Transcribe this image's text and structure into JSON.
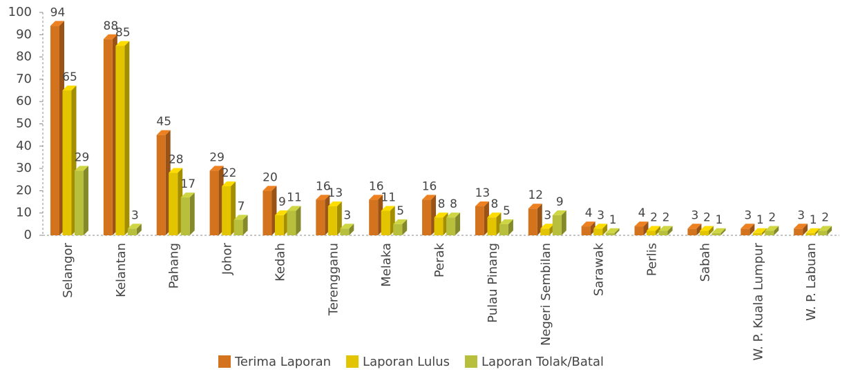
{
  "chart_data": {
    "type": "bar",
    "categories": [
      "Selangor",
      "Kelantan",
      "Pahang",
      "Johor",
      "Kedah",
      "Terengganu",
      "Melaka",
      "Perak",
      "Pulau Pinang",
      "Negeri Sembilan",
      "Sarawak",
      "Perlis",
      "Sabah",
      "W. P. Kuala Lumpur",
      "W. P. Labuan"
    ],
    "series": [
      {
        "name": "Terima Laporan",
        "color": "#d4731e",
        "values": [
          94,
          88,
          45,
          29,
          20,
          16,
          16,
          16,
          13,
          12,
          4,
          4,
          3,
          3,
          3
        ]
      },
      {
        "name": "Laporan Lulus",
        "color": "#e2c400",
        "values": [
          65,
          85,
          28,
          22,
          9,
          13,
          11,
          8,
          8,
          3,
          3,
          2,
          2,
          1,
          1
        ]
      },
      {
        "name": "Laporan Tolak/Batal",
        "color": "#b8bf3c",
        "values": [
          29,
          3,
          17,
          7,
          11,
          3,
          5,
          8,
          5,
          9,
          1,
          2,
          1,
          2,
          2
        ]
      }
    ],
    "ylim": [
      0,
      100
    ],
    "yticks": [
      0,
      10,
      20,
      30,
      40,
      50,
      60,
      70,
      80,
      90,
      100
    ],
    "legend": "bottom"
  }
}
